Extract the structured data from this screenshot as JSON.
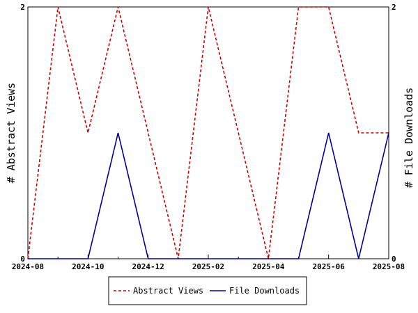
{
  "chart_data": {
    "type": "line",
    "x": [
      "2024-08",
      "2024-09",
      "2024-10",
      "2024-11",
      "2024-12",
      "2025-01",
      "2025-02",
      "2025-03",
      "2025-04",
      "2025-05",
      "2025-06",
      "2025-07",
      "2025-08"
    ],
    "x_tick_labels": [
      "2024-08",
      "2024-10",
      "2024-12",
      "2025-02",
      "2025-04",
      "2025-06",
      "2025-08"
    ],
    "series": [
      {
        "name": "Abstract Views",
        "axis": "left",
        "color": "#cc0000",
        "dash": "dashed",
        "values": [
          0,
          2,
          1,
          2,
          1,
          0,
          2,
          1,
          0,
          2,
          2,
          1,
          1
        ]
      },
      {
        "name": "File Downloads",
        "axis": "right",
        "color": "#000099",
        "dash": "solid",
        "values": [
          0,
          0,
          0,
          1,
          0,
          0,
          0,
          0,
          0,
          0,
          1,
          0,
          1
        ]
      }
    ],
    "ylabel": "# Abstract Views",
    "y2label": "# File Downloads",
    "ylim": [
      0,
      2
    ],
    "y2lim": [
      0,
      2
    ],
    "y_ticks": [
      "0",
      "2"
    ],
    "y2_ticks": [
      "0",
      "2"
    ],
    "grid": false,
    "legend_position": "bottom-center"
  }
}
